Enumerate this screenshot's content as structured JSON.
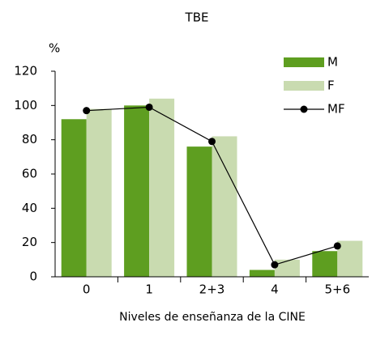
{
  "chart_data": {
    "type": "bar",
    "title": "TBE",
    "ylabel": "%",
    "xlabel": "Niveles de enseñanza de la CINE",
    "categories": [
      "0",
      "1",
      "2+3",
      "4",
      "5+6"
    ],
    "series": [
      {
        "name": "M",
        "type": "bar",
        "color": "#5e9e20",
        "values": [
          92,
          100,
          76,
          4,
          15
        ]
      },
      {
        "name": "F",
        "type": "bar",
        "color": "#c9dbb0",
        "values": [
          98,
          104,
          82,
          10,
          21
        ]
      },
      {
        "name": "MF",
        "type": "line",
        "color": "#000000",
        "values": [
          97,
          99,
          79,
          7,
          18
        ]
      }
    ],
    "ylim": [
      0,
      120
    ],
    "yticks": [
      0,
      20,
      40,
      60,
      80,
      100,
      120
    ],
    "legend": "top-right"
  }
}
